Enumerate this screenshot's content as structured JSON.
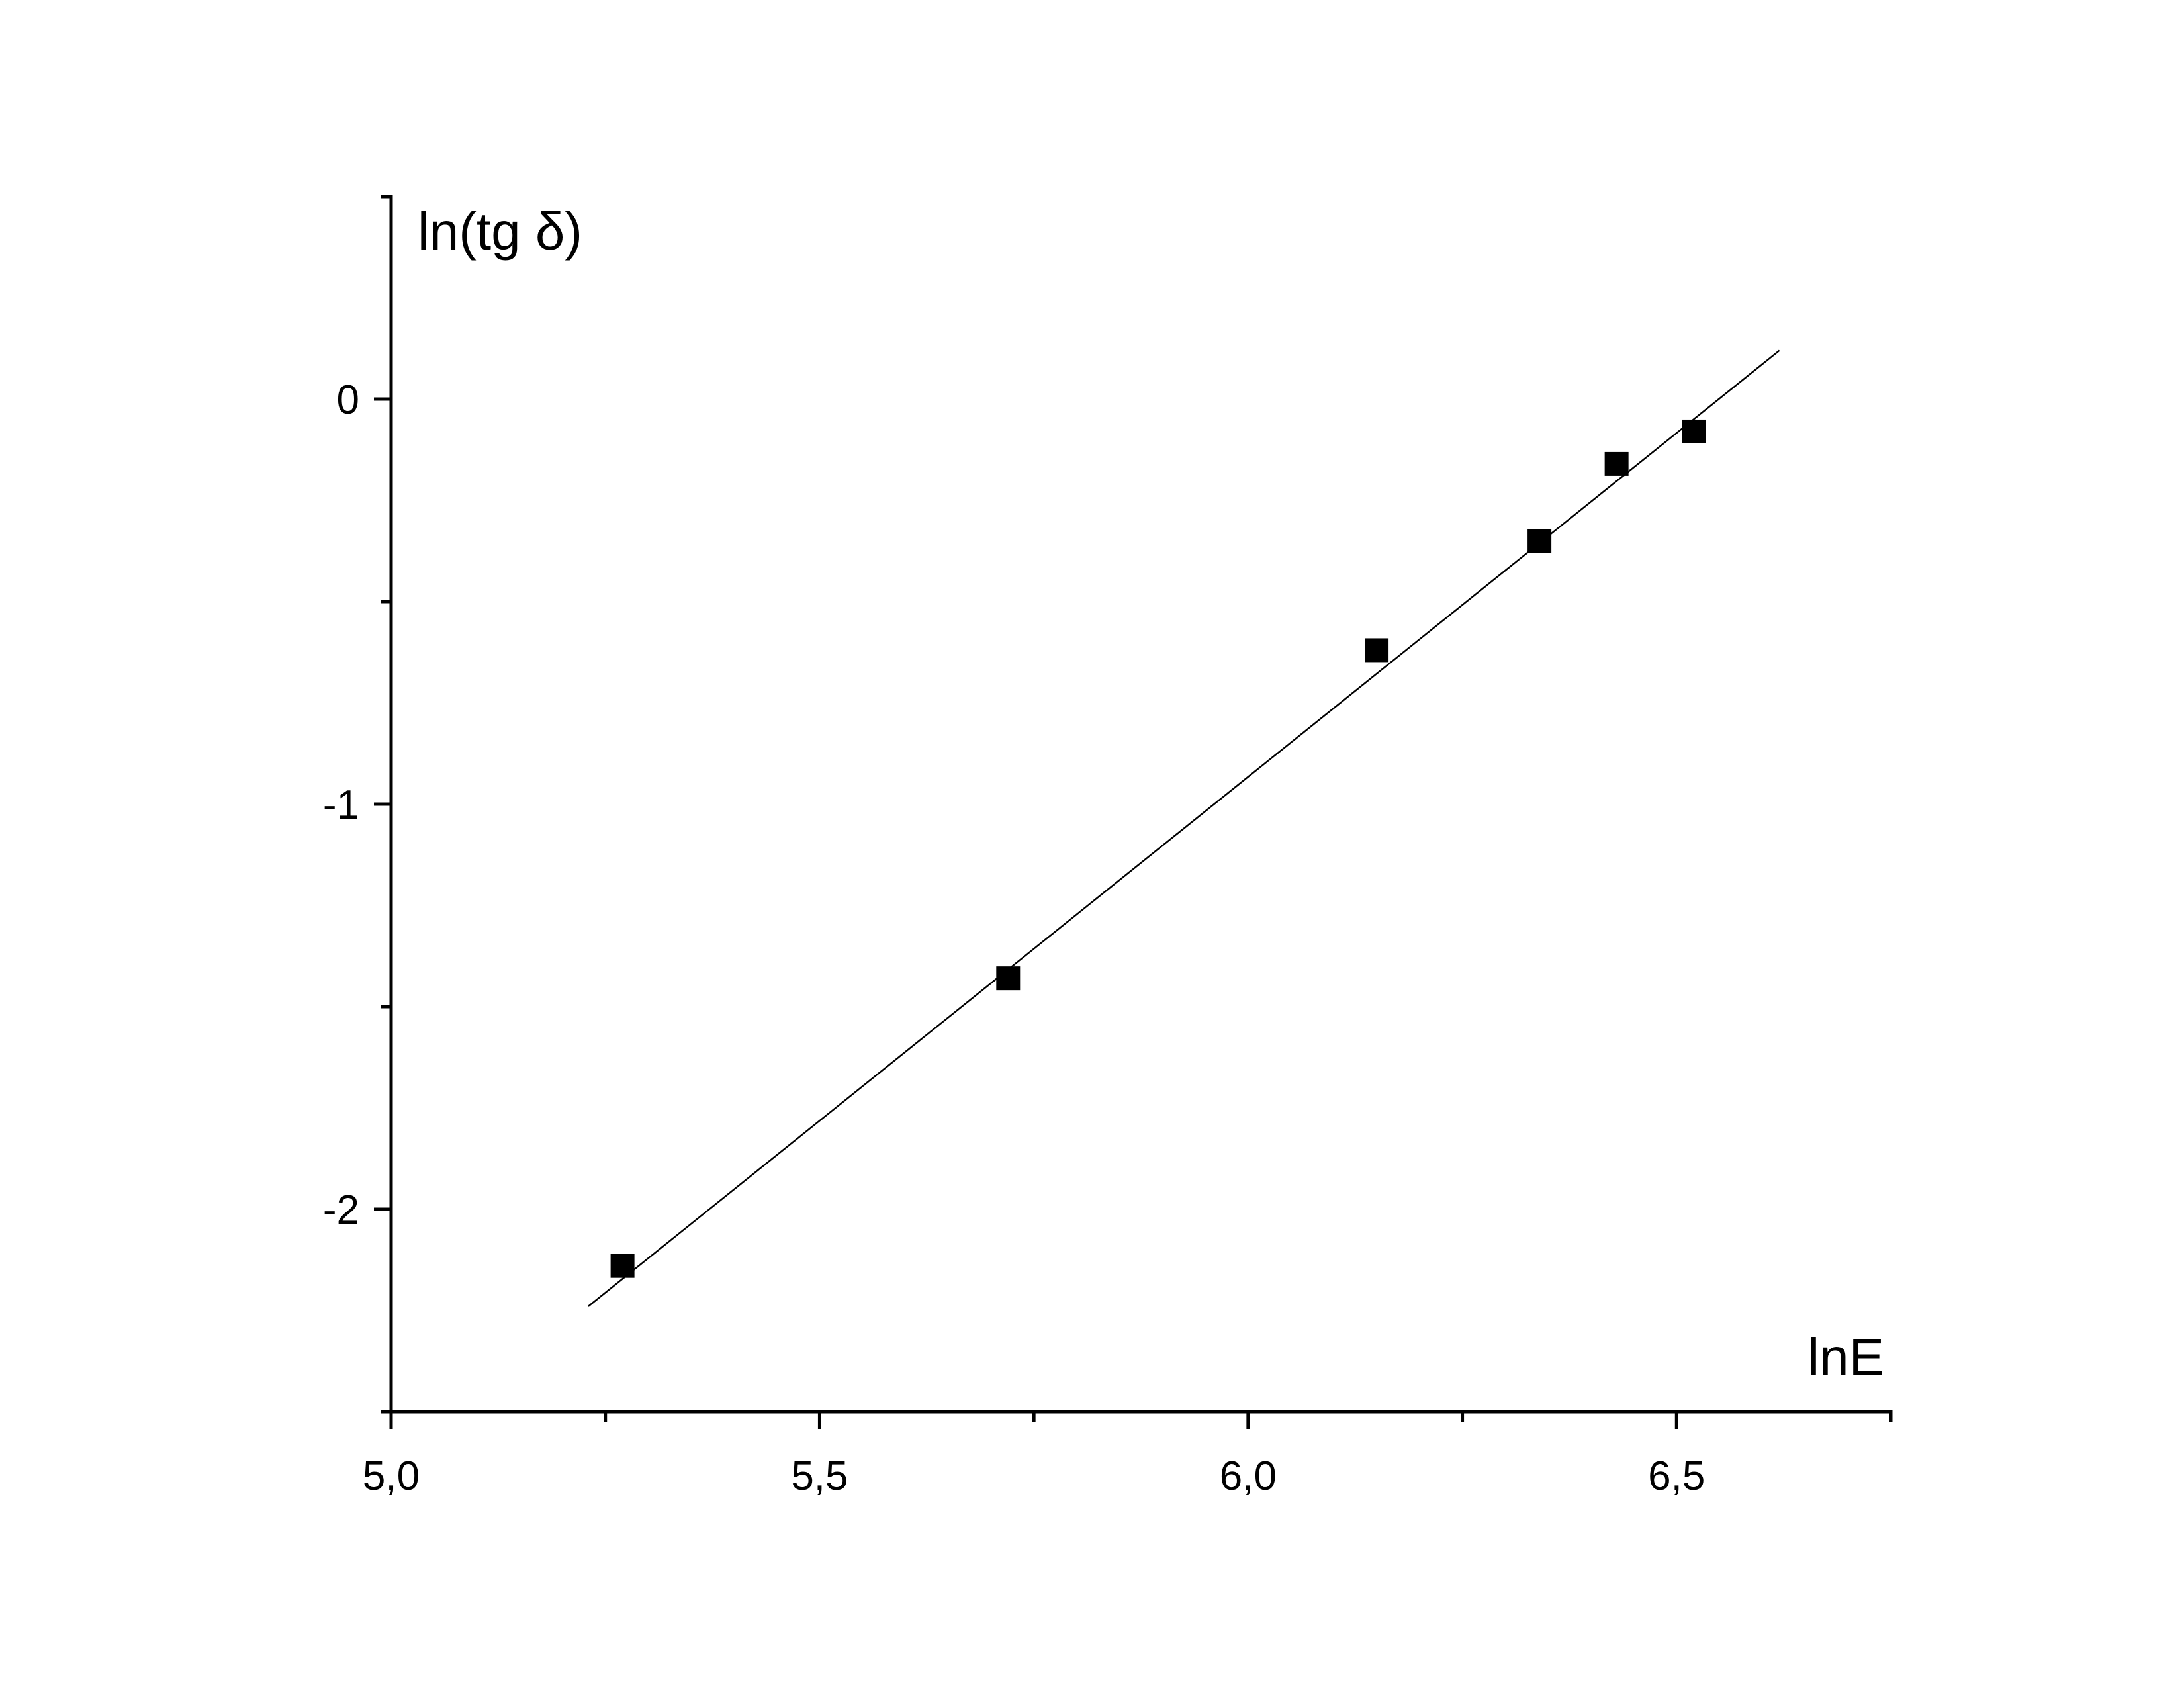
{
  "chart_data": {
    "type": "scatter",
    "xlabel": "lnE",
    "ylabel": "ln(tg δ)",
    "xlim": [
      5.0,
      6.75
    ],
    "ylim": [
      -2.5,
      0.5
    ],
    "x_ticks": [
      5.0,
      5.5,
      6.0,
      6.5
    ],
    "x_tick_labels": [
      "5,0",
      "5,5",
      "6,0",
      "6,5"
    ],
    "x_minor_ticks": [
      5.25,
      5.75,
      6.25,
      6.75
    ],
    "y_ticks": [
      0,
      -1,
      -2
    ],
    "y_tick_labels": [
      "0",
      "-1",
      "-2"
    ],
    "y_minor_ticks": [
      0.5,
      -0.5,
      -1.5,
      -2.5
    ],
    "grid": false,
    "legend": "none",
    "series": [
      {
        "marker": "square",
        "color": "#000000",
        "points": [
          {
            "x": 5.27,
            "y": -2.14
          },
          {
            "x": 5.72,
            "y": -1.43
          },
          {
            "x": 6.15,
            "y": -0.62
          },
          {
            "x": 6.34,
            "y": -0.35
          },
          {
            "x": 6.43,
            "y": -0.16
          },
          {
            "x": 6.52,
            "y": -0.08
          }
        ]
      }
    ],
    "fit_line": {
      "type": "linear",
      "color": "#000000",
      "x": [
        5.23,
        6.62
      ],
      "y": [
        -2.24,
        0.12
      ]
    }
  }
}
